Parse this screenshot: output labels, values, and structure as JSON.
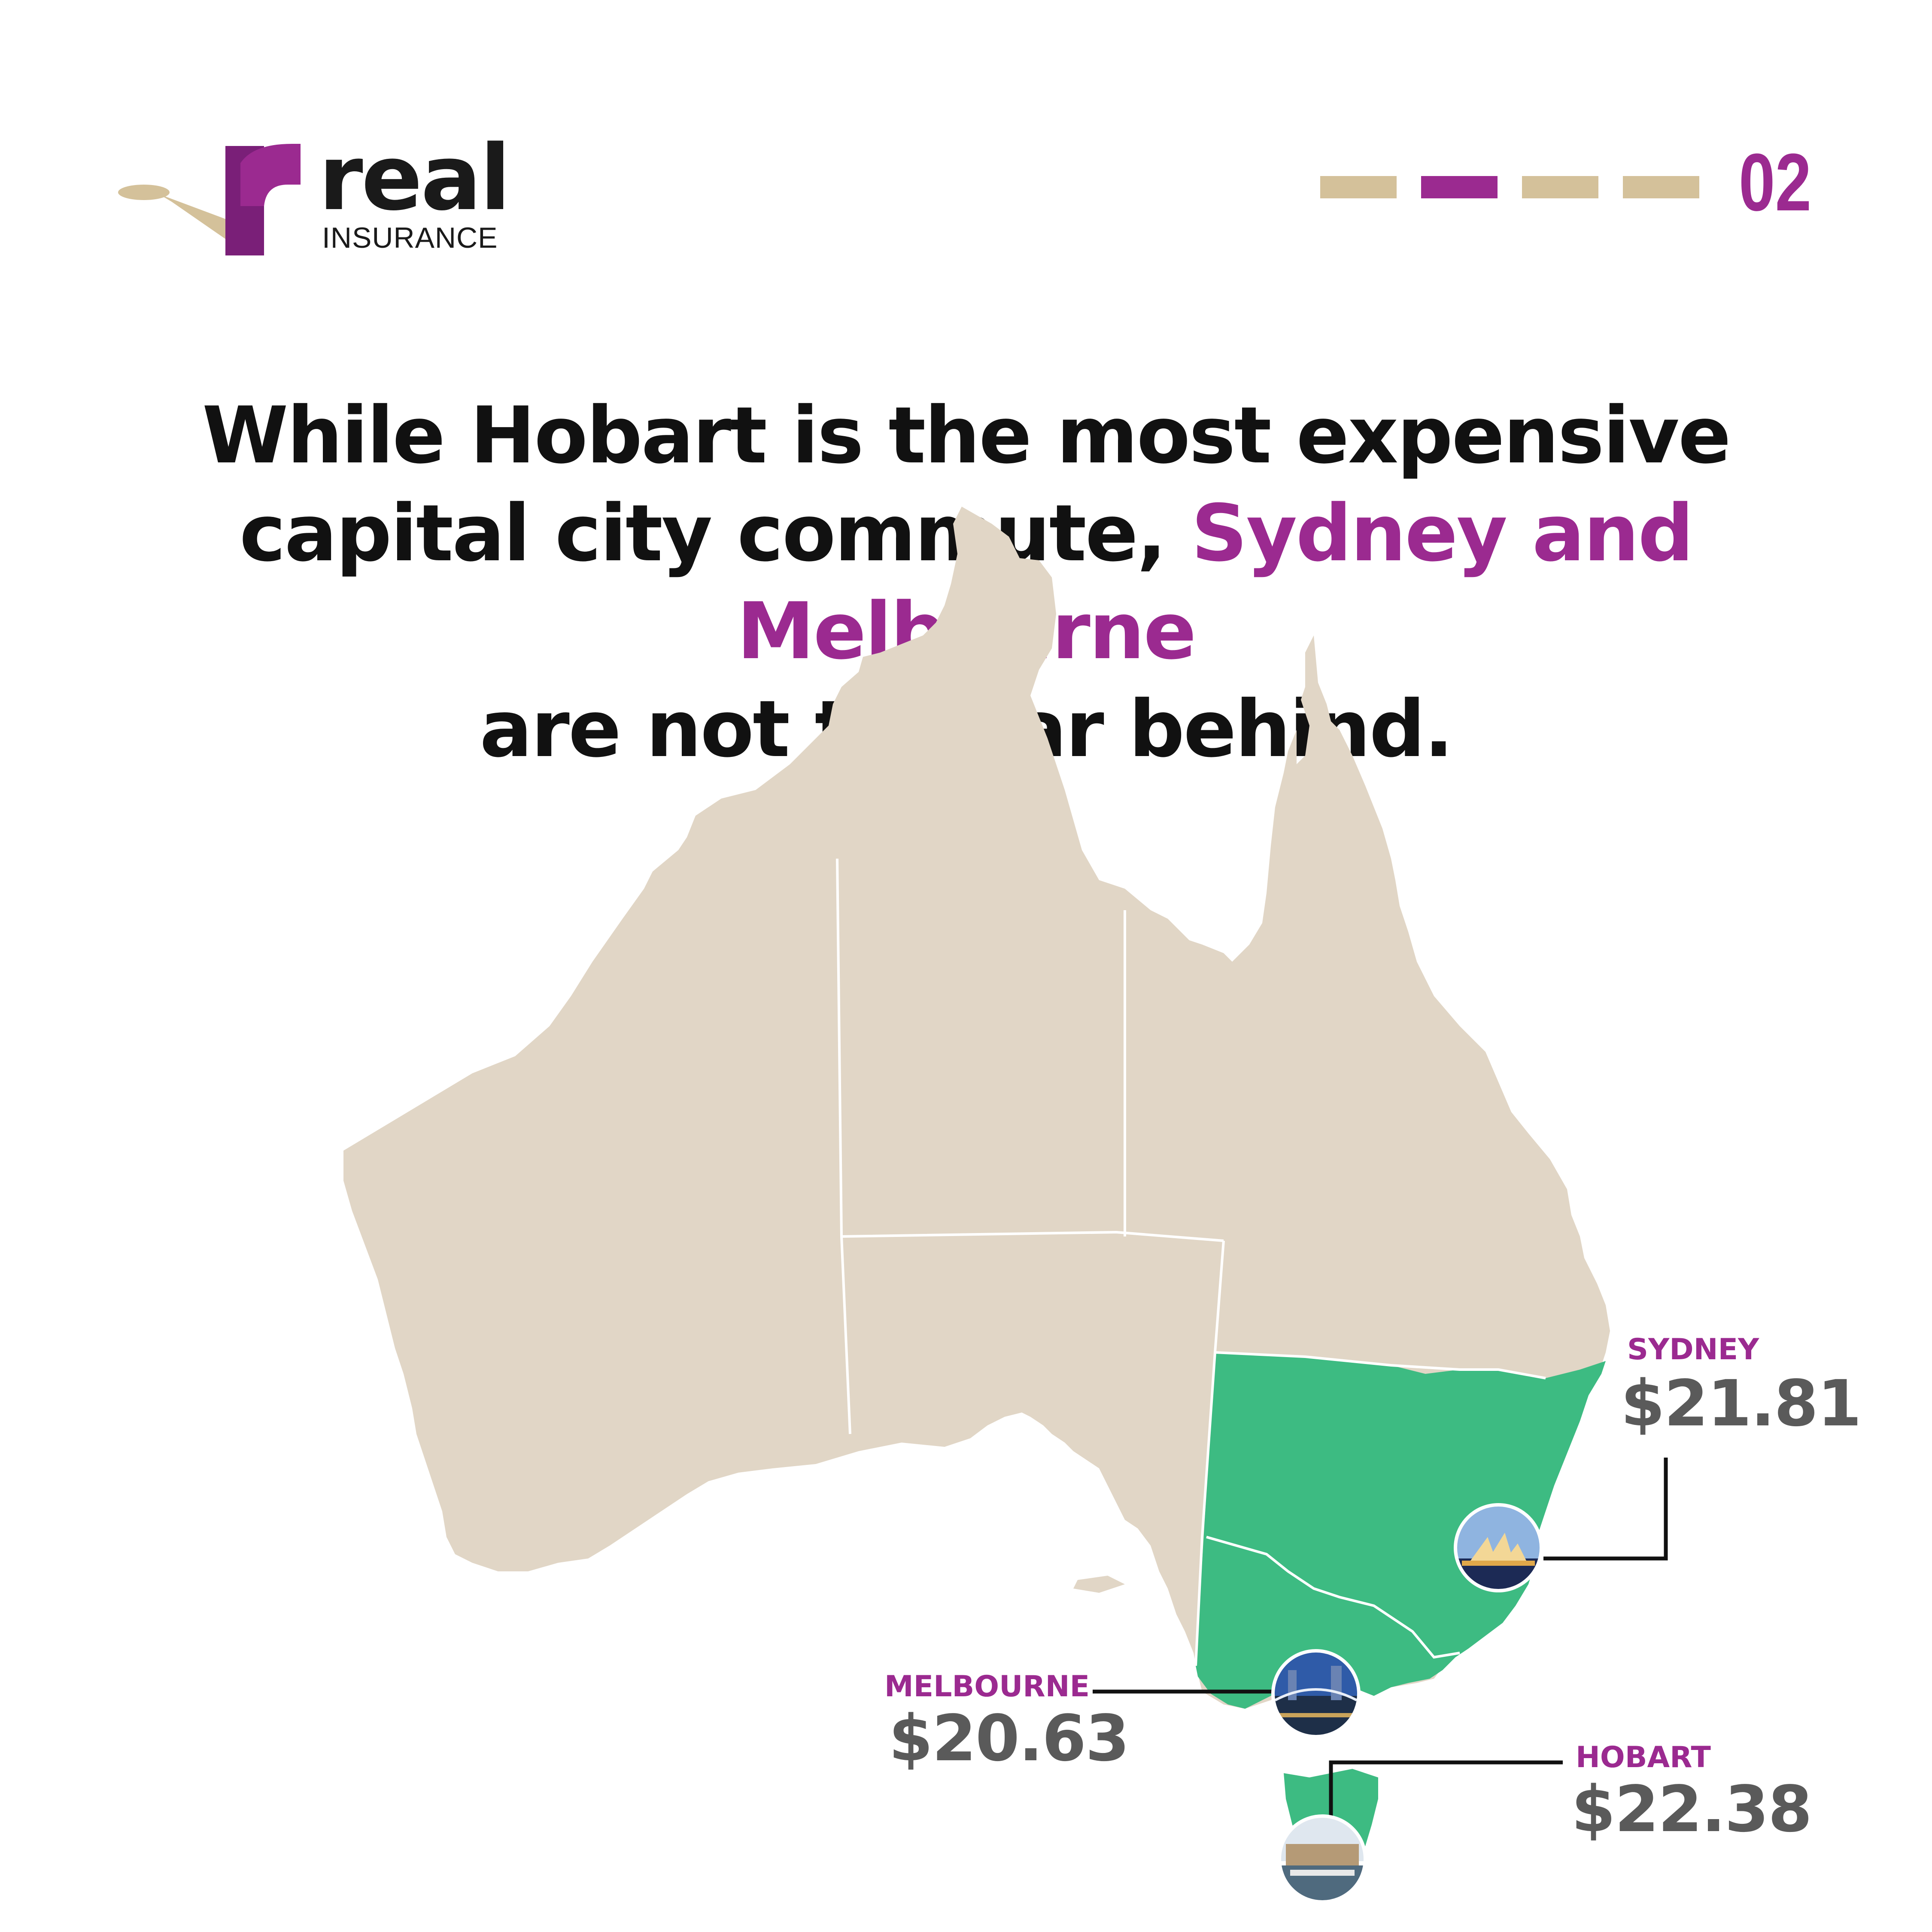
{
  "colors": {
    "accent": "#9b2a90",
    "land": "#e1d6c6",
    "highlight": "#3dbb82",
    "dash_inactive": "#d4c19a",
    "price_text": "#5a5a5a",
    "text": "#111111"
  },
  "logo": {
    "word": "real",
    "sub": "INSURANCE",
    "icon": "r-letter-logo"
  },
  "progress": {
    "dashes": [
      false,
      true,
      false,
      false
    ],
    "page_number": "02"
  },
  "headline": {
    "line1": "While Hobart is the most expensive",
    "line2_pre": "capital city commute, ",
    "line2_highlight": "Sydney and Melbourne",
    "line3": "are not too far behind."
  },
  "cities": {
    "sydney": {
      "name": "SYDNEY",
      "price": "$21.81",
      "photo": "opera-house-photo"
    },
    "melbourne": {
      "name": "MELBOURNE",
      "price": "$20.63",
      "photo": "melbourne-bridge-photo"
    },
    "hobart": {
      "name": "HOBART",
      "price": "$22.38",
      "photo": "hobart-harbour-photo"
    }
  },
  "map": {
    "highlighted_regions": [
      "New South Wales",
      "Victoria",
      "Tasmania"
    ]
  }
}
